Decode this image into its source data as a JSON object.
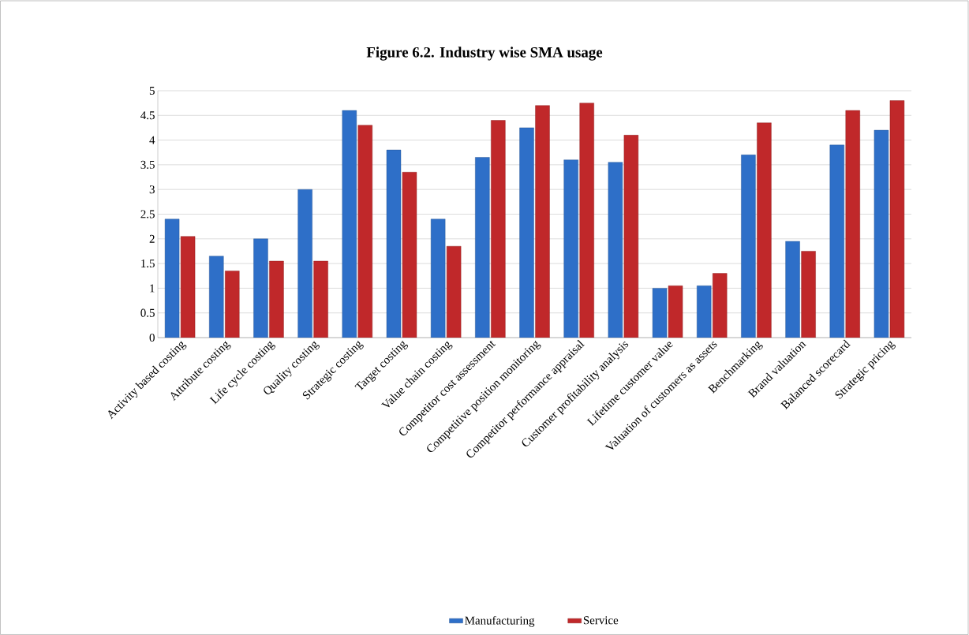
{
  "chart_data": {
    "type": "bar",
    "title": "Figure 6.2. Industry wise SMA usage",
    "categories": [
      "Activity based costing",
      "Attribute costing",
      "Life cycle costing",
      "Quality costing",
      "Strategic costing",
      "Target costing",
      "Value chain costing",
      "Competitor cost assessment",
      "Competitive position monitoring",
      "Competitor performance appraisal",
      "Customer profitability analysis",
      "Lifetime customer value",
      "Valuation of customers as assets",
      "Benchmarking",
      "Brand valuation",
      "Balanced scorecard",
      "Strategic pricing"
    ],
    "series": [
      {
        "name": "Manufacturing",
        "color": "#2e6fc8",
        "values": [
          2.4,
          1.65,
          2.0,
          3.0,
          4.6,
          3.8,
          2.4,
          3.65,
          4.25,
          3.6,
          3.55,
          1.0,
          1.05,
          3.7,
          1.95,
          3.9,
          4.2
        ]
      },
      {
        "name": "Service",
        "color": "#c0282a",
        "values": [
          2.05,
          1.35,
          1.55,
          1.55,
          4.3,
          3.35,
          1.85,
          4.4,
          4.7,
          4.75,
          4.1,
          1.05,
          1.3,
          4.35,
          1.75,
          4.6,
          4.8
        ]
      }
    ],
    "ylim": [
      0,
      5
    ],
    "yticks": [
      0,
      0.5,
      1,
      1.5,
      2,
      2.5,
      3,
      3.5,
      4,
      4.5,
      5
    ],
    "grid": "y",
    "legend": "bottom"
  }
}
